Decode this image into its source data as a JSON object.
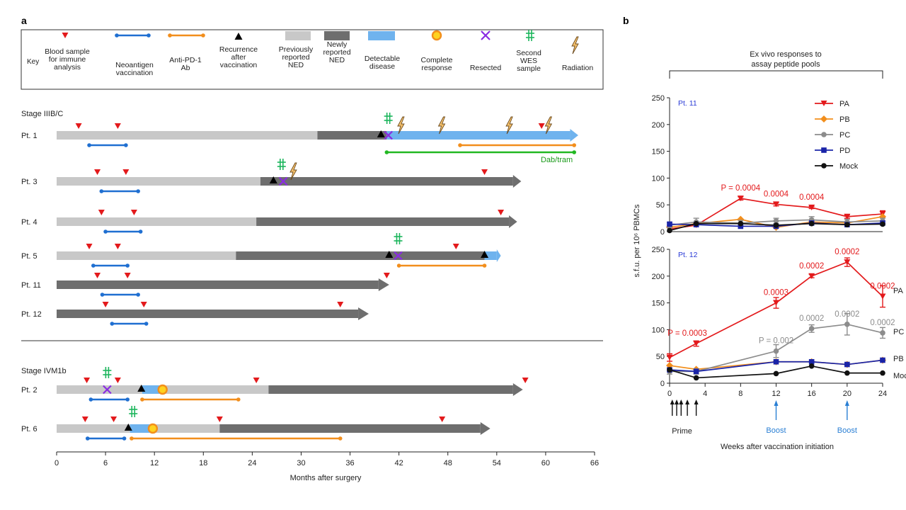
{
  "panel_labels": {
    "a": "a",
    "b": "b"
  },
  "colors": {
    "blood": "#e31a1c",
    "vaccine": "#1f6fd1",
    "antipd1": "#f28e1c",
    "prev_ned": "#c8c8c8",
    "new_ned": "#6e6e6e",
    "detectable": "#6fb3ee",
    "resected": "#8a2be2",
    "wes": "#1bb55c",
    "radiation": "#c87f1e",
    "dabtram": "#22b822",
    "text_blue": "#2a3bd6",
    "pa": "#e31a1c",
    "pb": "#f28e1c",
    "pc": "#8c8c8c",
    "pd": "#1a24a8",
    "mock": "#111111",
    "boost": "#2a7fd4"
  },
  "key": {
    "title": "Key",
    "items": {
      "blood": [
        "Blood sample",
        "for immune",
        "analysis"
      ],
      "vaccine": [
        "Neoantigen",
        "vaccination"
      ],
      "antipd1": [
        "Anti-PD-1",
        "Ab"
      ],
      "recurrence": [
        "Recurrence",
        "after",
        "vaccination"
      ],
      "prev_ned": [
        "Previously",
        "reported",
        "NED"
      ],
      "new_ned": [
        "Newly",
        "reported",
        "NED"
      ],
      "detectable": [
        "Detectable",
        "disease"
      ],
      "complete": [
        "Complete",
        "response"
      ],
      "resected": [
        "Resected"
      ],
      "wes": [
        "Second",
        "WES",
        "sample"
      ],
      "radiation": [
        "Radiation"
      ]
    }
  },
  "timeline": {
    "x_axis": {
      "label": "Months after surgery",
      "min": 0,
      "max": 66,
      "ticks": [
        0,
        6,
        12,
        18,
        24,
        30,
        36,
        42,
        48,
        54,
        60,
        66
      ]
    },
    "stage_labels": [
      "Stage IIIB/C",
      "Stage IVM1b"
    ],
    "dabtram_label": "Dab/tram",
    "patients": [
      {
        "label": "Pt. 1",
        "group": 0,
        "segments": [
          [
            0,
            32,
            "prev_ned"
          ],
          [
            32,
            40.5,
            "new_ned"
          ],
          [
            40.5,
            63,
            "detectable"
          ]
        ],
        "arrow_end": 64,
        "arrow_type": "detectable",
        "blood": [
          2.7,
          7.5,
          59.5
        ],
        "vaccine": [
          4,
          8.5
        ],
        "antipd1": [
          49.5,
          63.5
        ],
        "dabtram": [
          40.5,
          63.5
        ],
        "recurrence": [
          39.8
        ],
        "resected": [
          40.7
        ],
        "wes": [
          40.7
        ],
        "radiation": [
          42.2,
          47.2,
          55.5,
          60.3
        ],
        "complete": []
      },
      {
        "label": "Pt. 3",
        "group": 0,
        "segments": [
          [
            0,
            25,
            "prev_ned"
          ],
          [
            25,
            56,
            "new_ned"
          ]
        ],
        "arrow_end": 57,
        "arrow_type": "new_ned",
        "blood": [
          5,
          8.5,
          52.5
        ],
        "vaccine": [
          5.5,
          10
        ],
        "antipd1": null,
        "dabtram": null,
        "recurrence": [
          26.6
        ],
        "resected": [
          27.8
        ],
        "wes": [
          27.6
        ],
        "radiation": [
          29
        ],
        "complete": []
      },
      {
        "label": "Pt. 4",
        "group": 0,
        "segments": [
          [
            0,
            24.5,
            "prev_ned"
          ],
          [
            24.5,
            55.5,
            "new_ned"
          ]
        ],
        "arrow_end": 56.5,
        "arrow_type": "new_ned",
        "blood": [
          5.5,
          9.5,
          54.5
        ],
        "vaccine": [
          6,
          10.3
        ],
        "antipd1": null,
        "dabtram": null,
        "recurrence": [],
        "resected": [],
        "wes": [],
        "radiation": [],
        "complete": []
      },
      {
        "label": "Pt. 5",
        "group": 0,
        "segments": [
          [
            0,
            22,
            "prev_ned"
          ],
          [
            22,
            52.5,
            "new_ned"
          ],
          [
            52.5,
            54,
            "detectable"
          ]
        ],
        "arrow_end": 54.5,
        "arrow_type": "detectable",
        "blood": [
          4,
          7.5,
          49
        ],
        "vaccine": [
          4.5,
          8.7
        ],
        "antipd1": [
          42,
          52.5
        ],
        "dabtram": null,
        "recurrence": [
          40.8,
          52.5
        ],
        "resected": [
          41.9
        ],
        "wes": [
          41.9
        ],
        "radiation": [],
        "complete": []
      },
      {
        "label": "Pt. 11",
        "group": 0,
        "segments": [
          [
            0,
            39.5,
            "new_ned"
          ]
        ],
        "arrow_end": 40.8,
        "arrow_type": "new_ned",
        "blood": [
          5,
          8.7,
          40.5
        ],
        "vaccine": [
          5.6,
          10
        ],
        "antipd1": null,
        "dabtram": null,
        "recurrence": [],
        "resected": [],
        "wes": [],
        "radiation": [],
        "complete": []
      },
      {
        "label": "Pt. 12",
        "group": 0,
        "segments": [
          [
            0,
            37,
            "new_ned"
          ]
        ],
        "arrow_end": 38.3,
        "arrow_type": "new_ned",
        "blood": [
          6,
          10.7,
          34.8
        ],
        "vaccine": [
          6.8,
          11
        ],
        "antipd1": null,
        "dabtram": null,
        "recurrence": [],
        "resected": [],
        "wes": [],
        "radiation": [],
        "complete": []
      },
      {
        "label": "Pt. 2",
        "group": 1,
        "segments": [
          [
            0,
            10.5,
            "prev_ned"
          ],
          [
            10.5,
            13,
            "detectable"
          ],
          [
            13,
            26,
            "prev_ned"
          ],
          [
            26,
            56,
            "new_ned"
          ]
        ],
        "arrow_end": 57.2,
        "arrow_type": "new_ned",
        "blood": [
          3.7,
          7.5,
          24.5,
          57.5
        ],
        "vaccine": [
          4.2,
          8.7
        ],
        "antipd1": [
          10.5,
          22.3
        ],
        "dabtram": null,
        "recurrence": [
          10.4
        ],
        "resected": [
          6.2
        ],
        "wes": [
          6.2
        ],
        "radiation": [],
        "complete": [
          13
        ]
      },
      {
        "label": "Pt. 6",
        "group": 1,
        "segments": [
          [
            0,
            9,
            "prev_ned"
          ],
          [
            9,
            12,
            "detectable"
          ],
          [
            12,
            20,
            "prev_ned"
          ],
          [
            20,
            52,
            "new_ned"
          ]
        ],
        "arrow_end": 53.2,
        "arrow_type": "new_ned",
        "blood": [
          3.5,
          7,
          20,
          47.3
        ],
        "vaccine": [
          3.8,
          8.3
        ],
        "antipd1": [
          9.2,
          34.8
        ],
        "dabtram": null,
        "recurrence": [
          8.8
        ],
        "resected": [],
        "wes": [
          9.4
        ],
        "radiation": [],
        "complete": [
          11.8
        ]
      }
    ]
  },
  "chart_data": {
    "type": "line",
    "title": "Ex vivo responses to assay peptide pools",
    "xlabel": "Weeks after vaccination initiation",
    "ylabel": "s.f.u. per 10⁶ PBMCs",
    "x_ticks": [
      0,
      4,
      8,
      12,
      16,
      20,
      24
    ],
    "xlim": [
      0,
      24
    ],
    "ylim": [
      0,
      250
    ],
    "y_ticks": [
      0,
      50,
      100,
      150,
      200,
      250
    ],
    "prime_label": "Prime",
    "prime_weeks": [
      0.3,
      0.8,
      1.3,
      2,
      3
    ],
    "boost_label": "Boost",
    "boost_weeks": [
      12,
      20
    ],
    "legend": [
      "PA",
      "PB",
      "PC",
      "PD",
      "Mock"
    ],
    "panels": [
      {
        "name": "Pt. 11",
        "series": [
          {
            "name": "PA",
            "x": [
              0,
              3,
              8,
              12,
              16,
              20,
              24
            ],
            "y": [
              5,
              12,
              62,
              51,
              45,
              28,
              33
            ],
            "err": [
              0,
              0,
              3,
              3,
              2,
              3,
              6
            ]
          },
          {
            "name": "PB",
            "x": [
              0,
              3,
              8,
              12,
              16,
              20,
              24
            ],
            "y": [
              8,
              15,
              23,
              8,
              18,
              16,
              28
            ],
            "err": [
              0,
              0,
              0,
              0,
              0,
              0,
              0
            ]
          },
          {
            "name": "PC",
            "x": [
              0,
              3,
              8,
              12,
              16,
              20,
              24
            ],
            "y": [
              12,
              18,
              16,
              20,
              22,
              18,
              20
            ],
            "err": [
              5,
              7,
              5,
              5,
              6,
              5,
              5
            ]
          },
          {
            "name": "PD",
            "x": [
              0,
              3,
              8,
              12,
              16,
              20,
              24
            ],
            "y": [
              14,
              13,
              10,
              10,
              16,
              13,
              16
            ],
            "err": [
              0,
              0,
              0,
              0,
              0,
              0,
              0
            ]
          },
          {
            "name": "Mock",
            "x": [
              0,
              3,
              8,
              12,
              16,
              20,
              24
            ],
            "y": [
              2,
              15,
              15,
              12,
              15,
              13,
              14
            ],
            "err": [
              0,
              0,
              0,
              0,
              0,
              0,
              0
            ]
          }
        ],
        "annotations": [
          {
            "text": "P = 0.0004",
            "x": 8,
            "y": 62,
            "series": "PA"
          },
          {
            "text": "0.0004",
            "x": 12,
            "y": 51,
            "series": "PA"
          },
          {
            "text": "0.0004",
            "x": 16,
            "y": 45,
            "series": "PA"
          }
        ]
      },
      {
        "name": "Pt. 12",
        "series": [
          {
            "name": "PA",
            "x": [
              0,
              3,
              12,
              16,
              20,
              24
            ],
            "y": [
              48,
              74,
              150,
              200,
              226,
              162
            ],
            "err": [
              7,
              5,
              10,
              3,
              8,
              20
            ]
          },
          {
            "name": "PB",
            "x": [
              0,
              3,
              12,
              16,
              20,
              24
            ],
            "y": [
              33,
              26,
              40,
              40,
              35,
              43
            ],
            "err": [
              0,
              0,
              0,
              0,
              0,
              0
            ]
          },
          {
            "name": "PC",
            "x": [
              0,
              3,
              12,
              16,
              20,
              24
            ],
            "y": [
              22,
              22,
              60,
              102,
              110,
              94
            ],
            "err": [
              5,
              5,
              12,
              7,
              20,
              10
            ]
          },
          {
            "name": "PD",
            "x": [
              0,
              3,
              12,
              16,
              20,
              24
            ],
            "y": [
              25,
              22,
              40,
              40,
              35,
              43
            ],
            "err": [
              0,
              0,
              0,
              0,
              0,
              0
            ]
          },
          {
            "name": "Mock",
            "x": [
              0,
              3,
              12,
              16,
              20,
              24
            ],
            "y": [
              25,
              10,
              18,
              32,
              19,
              19
            ],
            "err": [
              0,
              0,
              0,
              0,
              0,
              0
            ]
          }
        ],
        "annotations": [
          {
            "text": "P = 0.0003",
            "x": 2,
            "y": 74,
            "series": "PA"
          },
          {
            "text": "0.0003",
            "x": 12,
            "y": 150,
            "series": "PA"
          },
          {
            "text": "0.0002",
            "x": 16,
            "y": 200,
            "series": "PA"
          },
          {
            "text": "0.0002",
            "x": 20,
            "y": 226,
            "series": "PA"
          },
          {
            "text": "0.0002",
            "x": 24,
            "y": 162,
            "series": "PA"
          },
          {
            "text": "P = 0.002",
            "x": 12,
            "y": 60,
            "series": "PC"
          },
          {
            "text": "0.0002",
            "x": 16,
            "y": 102,
            "series": "PC"
          },
          {
            "text": "0.0002",
            "x": 20,
            "y": 110,
            "series": "PC"
          },
          {
            "text": "0.0002",
            "x": 24,
            "y": 94,
            "series": "PC"
          }
        ],
        "end_labels": [
          "PA",
          "PC",
          "PB",
          "Mock"
        ]
      }
    ]
  }
}
